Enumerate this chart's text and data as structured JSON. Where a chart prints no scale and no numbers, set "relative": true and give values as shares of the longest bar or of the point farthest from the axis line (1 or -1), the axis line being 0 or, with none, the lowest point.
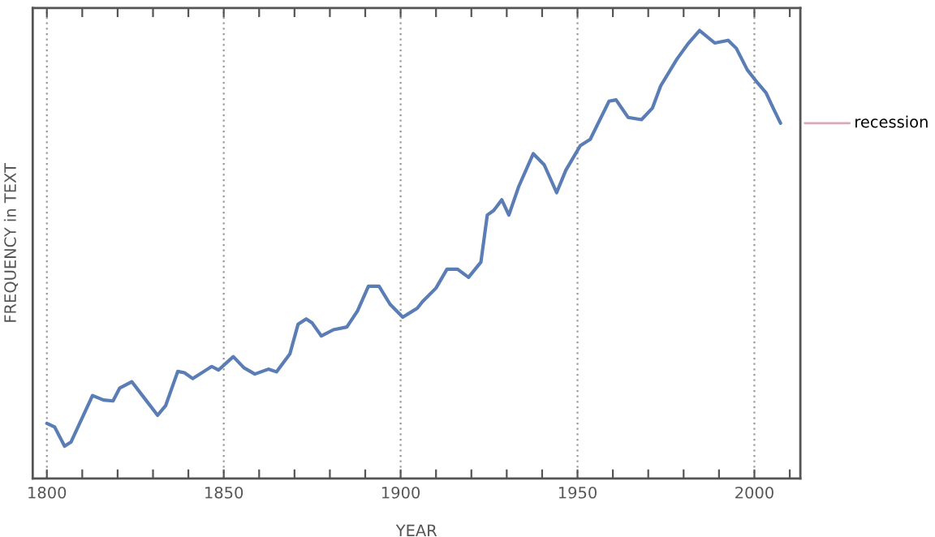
{
  "chart_data": {
    "type": "line",
    "relative": true,
    "xlabel": "YEAR",
    "ylabel": "FREQUENCY in TEXT",
    "grid": "x",
    "legend": false,
    "xlim": [
      1796,
      2013
    ],
    "xticks": [
      1800,
      {
        "value": 1810,
        "label": null
      },
      {
        "value": 1820,
        "label": null
      },
      {
        "value": 1830,
        "label": null
      },
      {
        "value": 1840,
        "label": null
      },
      1850,
      {
        "value": 1860,
        "label": null
      },
      {
        "value": 1870,
        "label": null
      },
      {
        "value": 1880,
        "label": null
      },
      {
        "value": 1890,
        "label": null
      },
      1900,
      {
        "value": 1910,
        "label": null
      },
      {
        "value": 1920,
        "label": null
      },
      {
        "value": 1930,
        "label": null
      },
      {
        "value": 1940,
        "label": null
      },
      1950,
      {
        "value": 1960,
        "label": null
      },
      {
        "value": 1970,
        "label": null
      },
      {
        "value": 1980,
        "label": null
      },
      {
        "value": 1990,
        "label": null
      },
      2000,
      {
        "value": 2010,
        "label": null
      }
    ],
    "series": [
      {
        "name": "recession",
        "color": "#5a7db5",
        "x": [
          1800,
          1802.2,
          1805,
          1806.8,
          1812.9,
          1816,
          1818.7,
          1820.6,
          1824,
          1827.4,
          1831.3,
          1833.6,
          1837,
          1838.9,
          1841.2,
          1846.6,
          1848.5,
          1852.7,
          1855.7,
          1858.8,
          1862.6,
          1864.9,
          1868.7,
          1871,
          1873.3,
          1874.9,
          1877.6,
          1881,
          1884.8,
          1887.8,
          1890.9,
          1893.9,
          1897,
          1900.6,
          1904.7,
          1906.2,
          1910,
          1913.1,
          1916.1,
          1919.2,
          1922.7,
          1924.5,
          1926.3,
          1928.6,
          1930.6,
          1933.4,
          1937.5,
          1940.6,
          1944.1,
          1946.7,
          1950.8,
          1953.6,
          1958.9,
          1960.9,
          1964.3,
          1968.1,
          1971.2,
          1973.5,
          1978.1,
          1981.4,
          1984.5,
          1988.8,
          1992.6,
          1994.9,
          1998,
          2001,
          2003.3,
          2005.3,
          2007.4
        ],
        "values": [
          0.123,
          0.115,
          0.072,
          0.081,
          0.185,
          0.175,
          0.173,
          0.202,
          0.216,
          0.181,
          0.141,
          0.163,
          0.239,
          0.236,
          0.223,
          0.25,
          0.242,
          0.272,
          0.247,
          0.233,
          0.244,
          0.238,
          0.278,
          0.344,
          0.356,
          0.348,
          0.318,
          0.332,
          0.338,
          0.374,
          0.429,
          0.429,
          0.389,
          0.36,
          0.38,
          0.395,
          0.425,
          0.467,
          0.467,
          0.449,
          0.483,
          0.588,
          0.598,
          0.622,
          0.588,
          0.652,
          0.725,
          0.7,
          0.638,
          0.688,
          0.743,
          0.757,
          0.842,
          0.845,
          0.806,
          0.801,
          0.827,
          0.876,
          0.936,
          0.972,
          1.0,
          0.972,
          0.978,
          0.96,
          0.912,
          0.882,
          0.861,
          0.827,
          0.793
        ]
      }
    ]
  }
}
